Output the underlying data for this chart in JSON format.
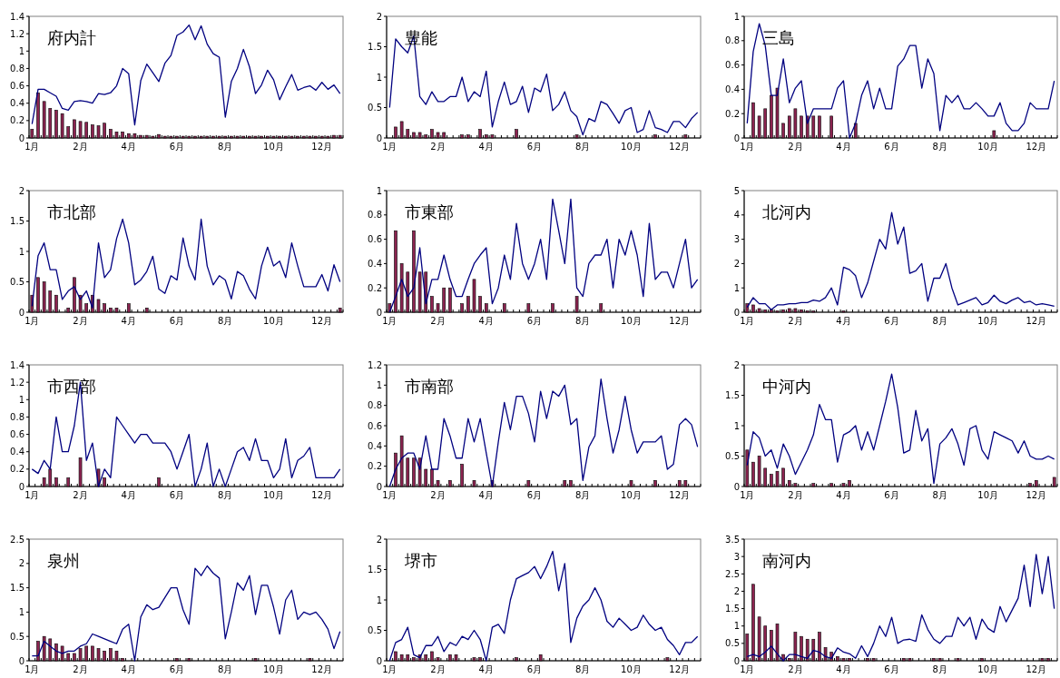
{
  "chart_data": [
    {
      "type": "bar",
      "title": "府内計",
      "ylim": [
        0,
        1.4
      ],
      "yticks": [
        0,
        0.2,
        0.4,
        0.6,
        0.8,
        1,
        1.2,
        1.4
      ],
      "categories": [
        "1月",
        null,
        null,
        null,
        null,
        null,
        null,
        null,
        "2月",
        null,
        null,
        null,
        null,
        null,
        null,
        null,
        "4月",
        null,
        null,
        null,
        null,
        null,
        null,
        null,
        "6月",
        null,
        null,
        null,
        null,
        null,
        null,
        null,
        "8月",
        null,
        null,
        null,
        null,
        null,
        null,
        null,
        "10月",
        null,
        null,
        null,
        null,
        null,
        null,
        null,
        "12月",
        null,
        null,
        null
      ],
      "series": [
        {
          "type": "bar",
          "color": "#8c2350",
          "values": [
            0.1,
            0.52,
            0.42,
            0.34,
            0.32,
            0.28,
            0.13,
            0.21,
            0.19,
            0.18,
            0.15,
            0.14,
            0.17,
            0.1,
            0.07,
            0.07,
            0.05,
            0.05,
            0.03,
            0.03,
            0.02,
            0.04,
            0.02,
            0.02,
            0.02,
            0.02,
            0.02,
            0.02,
            0.02,
            0.02,
            0.02,
            0.02,
            0.02,
            0.02,
            0.02,
            0.02,
            0.02,
            0.02,
            0.02,
            0.02,
            0.02,
            0.02,
            0.02,
            0.02,
            0.02,
            0.02,
            0.02,
            0.02,
            0.02,
            0.02,
            0.03,
            0.03
          ]
        },
        {
          "type": "line",
          "color": "#000080",
          "values": [
            0.16,
            0.56,
            0.56,
            0.52,
            0.48,
            0.34,
            0.32,
            0.42,
            0.43,
            0.42,
            0.4,
            0.51,
            0.5,
            0.52,
            0.6,
            0.8,
            0.74,
            0.15,
            0.66,
            0.85,
            0.75,
            0.65,
            0.86,
            0.95,
            1.18,
            1.22,
            1.3,
            1.13,
            1.29,
            1.08,
            0.97,
            0.93,
            0.24,
            0.65,
            0.8,
            1.02,
            0.82,
            0.51,
            0.61,
            0.78,
            0.67,
            0.44,
            0.59,
            0.73,
            0.55,
            0.58,
            0.6,
            0.55,
            0.64,
            0.56,
            0.61,
            0.51
          ]
        }
      ]
    },
    {
      "type": "bar",
      "title": "豊能",
      "ylim": [
        0,
        2
      ],
      "yticks": [
        0,
        0.5,
        1,
        1.5,
        2
      ],
      "categories": [
        "1月",
        null,
        null,
        null,
        null,
        null,
        null,
        null,
        "2月",
        null,
        null,
        null,
        null,
        null,
        null,
        null,
        "4月",
        null,
        null,
        null,
        null,
        null,
        null,
        null,
        "6月",
        null,
        null,
        null,
        null,
        null,
        null,
        null,
        "8月",
        null,
        null,
        null,
        null,
        null,
        null,
        null,
        "10月",
        null,
        null,
        null,
        null,
        null,
        null,
        null,
        "12月",
        null,
        null,
        null
      ],
      "series": [
        {
          "type": "bar",
          "color": "#8c2350",
          "values": [
            0,
            0.18,
            0.27,
            0.14,
            0.09,
            0.09,
            0.05,
            0.14,
            0.09,
            0.09,
            0,
            0,
            0.05,
            0.05,
            0,
            0.14,
            0.05,
            0.05,
            0,
            0,
            0,
            0.14,
            0,
            0,
            0,
            0,
            0,
            0,
            0,
            0,
            0,
            0.05,
            0,
            0,
            0,
            0,
            0,
            0,
            0,
            0,
            0,
            0,
            0,
            0,
            0.05,
            0,
            0,
            0,
            0,
            0.05,
            0,
            0
          ]
        },
        {
          "type": "line",
          "color": "#000080",
          "values": [
            0.5,
            1.63,
            1.5,
            1.4,
            1.68,
            0.68,
            0.55,
            0.76,
            0.6,
            0.6,
            0.68,
            0.68,
            1.0,
            0.6,
            0.76,
            0.68,
            1.1,
            0.18,
            0.6,
            0.92,
            0.55,
            0.6,
            0.85,
            0.42,
            0.82,
            0.76,
            1.05,
            0.45,
            0.55,
            0.76,
            0.45,
            0.35,
            0.05,
            0.32,
            0.27,
            0.6,
            0.55,
            0.4,
            0.24,
            0.45,
            0.5,
            0.09,
            0.14,
            0.45,
            0.17,
            0.14,
            0.09,
            0.27,
            0.27,
            0.17,
            0.32,
            0.42
          ]
        }
      ]
    },
    {
      "type": "bar",
      "title": "三島",
      "ylim": [
        0,
        1
      ],
      "yticks": [
        0,
        0.2,
        0.4,
        0.6,
        0.8,
        1
      ],
      "categories": [
        "1月",
        null,
        null,
        null,
        null,
        null,
        null,
        null,
        "2月",
        null,
        null,
        null,
        null,
        null,
        null,
        null,
        "4月",
        null,
        null,
        null,
        null,
        null,
        null,
        null,
        "6月",
        null,
        null,
        null,
        null,
        null,
        null,
        null,
        "8月",
        null,
        null,
        null,
        null,
        null,
        null,
        null,
        "10月",
        null,
        null,
        null,
        null,
        null,
        null,
        null,
        "12月",
        null,
        null,
        null
      ],
      "series": [
        {
          "type": "bar",
          "color": "#8c2350",
          "values": [
            0,
            0.29,
            0.18,
            0.24,
            0.35,
            0.41,
            0.12,
            0.18,
            0.24,
            0.18,
            0.18,
            0.18,
            0.18,
            0,
            0.18,
            0,
            0,
            0,
            0.12,
            0,
            0,
            0,
            0,
            0,
            0,
            0,
            0,
            0,
            0,
            0,
            0,
            0,
            0,
            0,
            0,
            0,
            0,
            0,
            0,
            0,
            0,
            0.06,
            0,
            0,
            0,
            0,
            0,
            0,
            0,
            0,
            0,
            0
          ]
        },
        {
          "type": "line",
          "color": "#000080",
          "values": [
            0.12,
            0.71,
            0.94,
            0.76,
            0.35,
            0.35,
            0.65,
            0.29,
            0.41,
            0.47,
            0.12,
            0.24,
            0.24,
            0.24,
            0.24,
            0.41,
            0.47,
            0,
            0.12,
            0.35,
            0.47,
            0.24,
            0.41,
            0.24,
            0.24,
            0.59,
            0.65,
            0.76,
            0.76,
            0.41,
            0.65,
            0.53,
            0.06,
            0.35,
            0.29,
            0.35,
            0.24,
            0.24,
            0.29,
            0.24,
            0.18,
            0.18,
            0.29,
            0.12,
            0.06,
            0.06,
            0.12,
            0.29,
            0.24,
            0.24,
            0.24,
            0.47
          ]
        }
      ]
    },
    {
      "type": "bar",
      "title": "市北部",
      "ylim": [
        0,
        2
      ],
      "yticks": [
        0,
        0.5,
        1,
        1.5,
        2
      ],
      "categories": [
        "1月",
        null,
        null,
        null,
        null,
        null,
        null,
        null,
        "2月",
        null,
        null,
        null,
        null,
        null,
        null,
        null,
        "4月",
        null,
        null,
        null,
        null,
        null,
        null,
        null,
        "6月",
        null,
        null,
        null,
        null,
        null,
        null,
        null,
        "8月",
        null,
        null,
        null,
        null,
        null,
        null,
        null,
        "10月",
        null,
        null,
        null,
        null,
        null,
        null,
        null,
        "12月",
        null,
        null,
        null
      ],
      "series": [
        {
          "type": "bar",
          "color": "#8c2350",
          "values": [
            0.28,
            0.57,
            0.5,
            0.35,
            0.28,
            0,
            0.07,
            0.57,
            0.28,
            0.14,
            0.28,
            0.21,
            0.14,
            0.07,
            0.07,
            0,
            0.14,
            0,
            0,
            0.07,
            0,
            0,
            0,
            0,
            0,
            0,
            0,
            0,
            0,
            0,
            0,
            0,
            0,
            0,
            0,
            0,
            0,
            0,
            0,
            0,
            0,
            0,
            0,
            0,
            0,
            0,
            0,
            0,
            0,
            0,
            0,
            0.07
          ]
        },
        {
          "type": "line",
          "color": "#000080",
          "values": [
            0.1,
            0.93,
            1.14,
            0.7,
            0.7,
            0.21,
            0.35,
            0.42,
            0.21,
            0.35,
            0.07,
            1.14,
            0.57,
            0.7,
            1.21,
            1.53,
            1.14,
            0.45,
            0.53,
            0.67,
            0.92,
            0.38,
            0.31,
            0.6,
            0.53,
            1.22,
            0.76,
            0.53,
            1.53,
            0.76,
            0.45,
            0.6,
            0.53,
            0.22,
            0.67,
            0.6,
            0.38,
            0.22,
            0.76,
            1.07,
            0.76,
            0.84,
            0.57,
            1.14,
            0.76,
            0.42,
            0.42,
            0.42,
            0.62,
            0.35,
            0.78,
            0.5
          ]
        }
      ]
    },
    {
      "type": "bar",
      "title": "市東部",
      "ylim": [
        0,
        1
      ],
      "yticks": [
        0,
        0.2,
        0.4,
        0.6,
        0.8,
        1
      ],
      "categories": [
        "1月",
        null,
        null,
        null,
        null,
        null,
        null,
        null,
        "2月",
        null,
        null,
        null,
        null,
        null,
        null,
        null,
        "4月",
        null,
        null,
        null,
        null,
        null,
        null,
        null,
        "6月",
        null,
        null,
        null,
        null,
        null,
        null,
        null,
        "8月",
        null,
        null,
        null,
        null,
        null,
        null,
        null,
        "10月",
        null,
        null,
        null,
        null,
        null,
        null,
        null,
        "12月",
        null,
        null,
        null
      ],
      "series": [
        {
          "type": "bar",
          "color": "#8c2350",
          "values": [
            0.07,
            0.67,
            0.4,
            0.33,
            0.67,
            0.33,
            0.33,
            0.13,
            0.07,
            0.2,
            0.2,
            0,
            0.07,
            0.13,
            0.27,
            0.13,
            0.07,
            0,
            0,
            0.07,
            0,
            0,
            0,
            0.07,
            0,
            0,
            0,
            0.07,
            0,
            0,
            0,
            0.13,
            0,
            0,
            0,
            0.07,
            0,
            0,
            0,
            0,
            0,
            0,
            0,
            0,
            0,
            0,
            0,
            0,
            0,
            0,
            0,
            0
          ]
        },
        {
          "type": "line",
          "color": "#000080",
          "values": [
            0,
            0.13,
            0.27,
            0.13,
            0.2,
            0.53,
            0.07,
            0.27,
            0.27,
            0.47,
            0.27,
            0.13,
            0.13,
            0.27,
            0.4,
            0.47,
            0.53,
            0.07,
            0.2,
            0.47,
            0.27,
            0.73,
            0.4,
            0.27,
            0.4,
            0.6,
            0.27,
            0.93,
            0.67,
            0.4,
            0.93,
            0.2,
            0.13,
            0.4,
            0.47,
            0.47,
            0.6,
            0.2,
            0.6,
            0.47,
            0.67,
            0.47,
            0.13,
            0.73,
            0.27,
            0.33,
            0.33,
            0.2,
            0.4,
            0.6,
            0.2,
            0.27
          ]
        }
      ]
    },
    {
      "type": "bar",
      "title": "北河内",
      "ylim": [
        0,
        5
      ],
      "yticks": [
        0,
        1,
        2,
        3,
        4,
        5
      ],
      "categories": [
        "1月",
        null,
        null,
        null,
        null,
        null,
        null,
        null,
        "2月",
        null,
        null,
        null,
        null,
        null,
        null,
        null,
        "4月",
        null,
        null,
        null,
        null,
        null,
        null,
        null,
        "6月",
        null,
        null,
        null,
        null,
        null,
        null,
        null,
        "8月",
        null,
        null,
        null,
        null,
        null,
        null,
        null,
        "10月",
        null,
        null,
        null,
        null,
        null,
        null,
        null,
        "12月",
        null,
        null,
        null
      ],
      "series": [
        {
          "type": "bar",
          "color": "#8c2350",
          "values": [
            0.35,
            0.3,
            0.15,
            0.1,
            0.1,
            0.05,
            0.1,
            0.15,
            0.15,
            0.1,
            0.05,
            0.05,
            0,
            0,
            0,
            0,
            0.05,
            0,
            0,
            0,
            0,
            0,
            0,
            0,
            0,
            0,
            0,
            0,
            0,
            0,
            0,
            0,
            0,
            0,
            0,
            0,
            0,
            0,
            0,
            0,
            0,
            0,
            0,
            0,
            0,
            0,
            0,
            0,
            0,
            0,
            0,
            0
          ]
        },
        {
          "type": "line",
          "color": "#000080",
          "values": [
            0.2,
            0.6,
            0.35,
            0.35,
            0.1,
            0.3,
            0.3,
            0.35,
            0.35,
            0.4,
            0.4,
            0.5,
            0.45,
            0.6,
            1.0,
            0.3,
            1.85,
            1.75,
            1.5,
            0.6,
            1.2,
            2.1,
            3.0,
            2.6,
            4.1,
            2.8,
            3.5,
            1.6,
            1.7,
            2.0,
            0.45,
            1.4,
            1.4,
            2.0,
            1.0,
            0.3,
            0.4,
            0.5,
            0.6,
            0.3,
            0.4,
            0.7,
            0.45,
            0.35,
            0.5,
            0.6,
            0.4,
            0.45,
            0.3,
            0.35,
            0.3,
            0.25
          ]
        }
      ]
    },
    {
      "type": "bar",
      "title": "市西部",
      "ylim": [
        0,
        1.4
      ],
      "yticks": [
        0,
        0.2,
        0.4,
        0.6,
        0.8,
        1,
        1.2,
        1.4
      ],
      "categories": [
        "1月",
        null,
        null,
        null,
        null,
        null,
        null,
        null,
        "2月",
        null,
        null,
        null,
        null,
        null,
        null,
        null,
        "4月",
        null,
        null,
        null,
        null,
        null,
        null,
        null,
        "6月",
        null,
        null,
        null,
        null,
        null,
        null,
        null,
        "8月",
        null,
        null,
        null,
        null,
        null,
        null,
        null,
        "10月",
        null,
        null,
        null,
        null,
        null,
        null,
        null,
        "12月",
        null,
        null,
        null
      ],
      "series": [
        {
          "type": "bar",
          "color": "#8c2350",
          "values": [
            0,
            0,
            0.1,
            0.2,
            0.1,
            0,
            0.1,
            0,
            0.33,
            0,
            0,
            0.2,
            0.1,
            0,
            0,
            0,
            0,
            0,
            0,
            0,
            0,
            0.1,
            0,
            0,
            0,
            0,
            0,
            0,
            0,
            0,
            0,
            0,
            0,
            0,
            0,
            0,
            0,
            0,
            0,
            0,
            0,
            0,
            0,
            0,
            0,
            0,
            0,
            0,
            0,
            0,
            0,
            0
          ]
        },
        {
          "type": "line",
          "color": "#000080",
          "values": [
            0.2,
            0.15,
            0.3,
            0.2,
            0.8,
            0.4,
            0.4,
            0.7,
            1.2,
            0.3,
            0.5,
            0,
            0.2,
            0.1,
            0.8,
            0.7,
            0.6,
            0.5,
            0.6,
            0.6,
            0.5,
            0.5,
            0.5,
            0.4,
            0.2,
            0.4,
            0.6,
            0,
            0.2,
            0.5,
            0,
            0.2,
            0,
            0.2,
            0.4,
            0.45,
            0.3,
            0.55,
            0.3,
            0.3,
            0.1,
            0.2,
            0.55,
            0.1,
            0.3,
            0.35,
            0.45,
            0.1,
            0.1,
            0.1,
            0.1,
            0.2
          ]
        }
      ]
    },
    {
      "type": "bar",
      "title": "市南部",
      "ylim": [
        0,
        1.2
      ],
      "yticks": [
        0,
        0.2,
        0.4,
        0.6,
        0.8,
        1,
        1.2
      ],
      "categories": [
        "1月",
        null,
        null,
        null,
        null,
        null,
        null,
        null,
        "2月",
        null,
        null,
        null,
        null,
        null,
        null,
        null,
        "4月",
        null,
        null,
        null,
        null,
        null,
        null,
        null,
        "6月",
        null,
        null,
        null,
        null,
        null,
        null,
        null,
        "8月",
        null,
        null,
        null,
        null,
        null,
        null,
        null,
        "10月",
        null,
        null,
        null,
        null,
        null,
        null,
        null,
        "12月",
        null,
        null,
        null
      ],
      "series": [
        {
          "type": "bar",
          "color": "#8c2350",
          "values": [
            0,
            0.33,
            0.5,
            0.28,
            0.28,
            0.28,
            0.17,
            0.17,
            0.06,
            0,
            0.06,
            0,
            0.22,
            0,
            0.06,
            0,
            0,
            0.06,
            0,
            0,
            0,
            0,
            0,
            0.06,
            0,
            0,
            0,
            0,
            0,
            0.06,
            0.06,
            0,
            0,
            0,
            0,
            0,
            0,
            0,
            0,
            0,
            0.06,
            0,
            0,
            0,
            0.06,
            0,
            0,
            0,
            0.06,
            0.06,
            0,
            0
          ]
        },
        {
          "type": "line",
          "color": "#000080",
          "values": [
            0,
            0.17,
            0.28,
            0.33,
            0.33,
            0.17,
            0.5,
            0.17,
            0.17,
            0.67,
            0.5,
            0.28,
            0.28,
            0.67,
            0.44,
            0.67,
            0.33,
            0,
            0.44,
            0.83,
            0.56,
            0.89,
            0.89,
            0.72,
            0.44,
            0.94,
            0.67,
            0.94,
            0.89,
            1.0,
            0.61,
            0.67,
            0.06,
            0.39,
            0.5,
            1.06,
            0.67,
            0.33,
            0.56,
            0.89,
            0.56,
            0.33,
            0.44,
            0.44,
            0.44,
            0.5,
            0.17,
            0.22,
            0.61,
            0.67,
            0.61,
            0.39
          ]
        }
      ]
    },
    {
      "type": "bar",
      "title": "中河内",
      "ylim": [
        0,
        2
      ],
      "yticks": [
        0,
        0.5,
        1,
        1.5,
        2
      ],
      "categories": [
        "1月",
        null,
        null,
        null,
        null,
        null,
        null,
        null,
        "2月",
        null,
        null,
        null,
        null,
        null,
        null,
        null,
        "4月",
        null,
        null,
        null,
        null,
        null,
        null,
        null,
        "6月",
        null,
        null,
        null,
        null,
        null,
        null,
        null,
        "8月",
        null,
        null,
        null,
        null,
        null,
        null,
        null,
        "10月",
        null,
        null,
        null,
        null,
        null,
        null,
        null,
        "12月",
        null,
        null,
        null
      ],
      "series": [
        {
          "type": "bar",
          "color": "#8c2350",
          "values": [
            0.6,
            0.4,
            0.5,
            0.3,
            0.2,
            0.25,
            0.3,
            0.1,
            0.05,
            0,
            0,
            0.05,
            0,
            0,
            0.05,
            0,
            0.05,
            0.1,
            0,
            0,
            0,
            0,
            0,
            0,
            0,
            0,
            0,
            0,
            0,
            0,
            0,
            0,
            0,
            0,
            0,
            0,
            0,
            0,
            0,
            0,
            0,
            0,
            0,
            0,
            0,
            0,
            0,
            0.05,
            0.1,
            0,
            0,
            0.15
          ]
        },
        {
          "type": "line",
          "color": "#000080",
          "values": [
            0.35,
            0.9,
            0.8,
            0.5,
            0.6,
            0.3,
            0.7,
            0.5,
            0.2,
            0.4,
            0.6,
            0.85,
            1.35,
            1.1,
            1.1,
            0.4,
            0.85,
            0.9,
            1.0,
            0.6,
            0.9,
            0.6,
            1.0,
            1.4,
            1.85,
            1.3,
            0.55,
            0.6,
            1.25,
            0.75,
            0.95,
            0.05,
            0.7,
            0.8,
            0.95,
            0.7,
            0.35,
            0.95,
            1.0,
            0.6,
            0.45,
            0.9,
            0.85,
            0.8,
            0.75,
            0.55,
            0.75,
            0.5,
            0.45,
            0.45,
            0.5,
            0.45
          ]
        }
      ]
    },
    {
      "type": "bar",
      "title": "泉州",
      "ylim": [
        0,
        2.5
      ],
      "yticks": [
        0,
        0.5,
        1,
        1.5,
        2,
        2.5
      ],
      "categories": [
        "1月",
        null,
        null,
        null,
        null,
        null,
        null,
        null,
        "2月",
        null,
        null,
        null,
        null,
        null,
        null,
        null,
        "4月",
        null,
        null,
        null,
        null,
        null,
        null,
        null,
        "6月",
        null,
        null,
        null,
        null,
        null,
        null,
        null,
        "8月",
        null,
        null,
        null,
        null,
        null,
        null,
        null,
        "10月",
        null,
        null,
        null,
        null,
        null,
        null,
        null,
        "12月",
        null,
        null,
        null
      ],
      "series": [
        {
          "type": "bar",
          "color": "#8c2350",
          "values": [
            0,
            0.4,
            0.5,
            0.45,
            0.35,
            0.3,
            0.15,
            0.15,
            0.25,
            0.3,
            0.3,
            0.25,
            0.2,
            0.25,
            0.2,
            0.05,
            0,
            0,
            0,
            0,
            0,
            0,
            0,
            0,
            0.05,
            0,
            0.05,
            0,
            0,
            0,
            0,
            0,
            0,
            0,
            0,
            0,
            0,
            0.05,
            0,
            0,
            0,
            0,
            0,
            0,
            0,
            0,
            0.05,
            0,
            0,
            0,
            0,
            0
          ]
        },
        {
          "type": "line",
          "color": "#000080",
          "values": [
            0.1,
            0.1,
            0.4,
            0.3,
            0.2,
            0.15,
            0.2,
            0.2,
            0.3,
            0.35,
            0.55,
            0.5,
            0.45,
            0.4,
            0.35,
            0.65,
            0.75,
            0,
            0.9,
            1.15,
            1.05,
            1.1,
            1.3,
            1.5,
            1.5,
            1.05,
            0.75,
            1.9,
            1.75,
            1.95,
            1.8,
            1.7,
            0.45,
            1.0,
            1.6,
            1.45,
            1.75,
            0.95,
            1.55,
            1.55,
            1.1,
            0.55,
            1.25,
            1.45,
            0.85,
            1.0,
            0.95,
            1.0,
            0.85,
            0.65,
            0.25,
            0.6
          ]
        }
      ]
    },
    {
      "type": "bar",
      "title": "堺市",
      "ylim": [
        0,
        2
      ],
      "yticks": [
        0,
        0.5,
        1,
        1.5,
        2
      ],
      "categories": [
        "1月",
        null,
        null,
        null,
        null,
        null,
        null,
        null,
        "2月",
        null,
        null,
        null,
        null,
        null,
        null,
        null,
        "4月",
        null,
        null,
        null,
        null,
        null,
        null,
        null,
        "6月",
        null,
        null,
        null,
        null,
        null,
        null,
        null,
        "8月",
        null,
        null,
        null,
        null,
        null,
        null,
        null,
        "10月",
        null,
        null,
        null,
        null,
        null,
        null,
        null,
        "12月",
        null,
        null,
        null
      ],
      "series": [
        {
          "type": "bar",
          "color": "#8c2350",
          "values": [
            0,
            0.15,
            0.1,
            0.1,
            0.05,
            0.1,
            0.1,
            0.15,
            0.05,
            0,
            0.1,
            0.1,
            0,
            0,
            0.05,
            0.05,
            0,
            0,
            0,
            0,
            0,
            0.05,
            0,
            0,
            0,
            0.1,
            0,
            0,
            0,
            0,
            0,
            0,
            0,
            0,
            0,
            0,
            0,
            0,
            0,
            0,
            0,
            0,
            0,
            0,
            0,
            0,
            0.05,
            0,
            0,
            0,
            0,
            0
          ]
        },
        {
          "type": "line",
          "color": "#000080",
          "values": [
            0,
            0.3,
            0.35,
            0.55,
            0.1,
            0.05,
            0.25,
            0.25,
            0.4,
            0.15,
            0.3,
            0.25,
            0.4,
            0.35,
            0.5,
            0.35,
            0,
            0.55,
            0.6,
            0.45,
            1.0,
            1.35,
            1.4,
            1.45,
            1.55,
            1.35,
            1.55,
            1.8,
            1.15,
            1.6,
            0.3,
            0.7,
            0.9,
            1.0,
            1.2,
            1.0,
            0.65,
            0.55,
            0.7,
            0.6,
            0.5,
            0.55,
            0.75,
            0.6,
            0.5,
            0.55,
            0.35,
            0.25,
            0.1,
            0.3,
            0.3,
            0.4
          ]
        }
      ]
    },
    {
      "type": "bar",
      "title": "南河内",
      "ylim": [
        0,
        3.5
      ],
      "yticks": [
        0,
        0.5,
        1,
        1.5,
        2,
        2.5,
        3,
        3.5
      ],
      "categories": [
        "1月",
        null,
        null,
        null,
        null,
        null,
        null,
        null,
        "2月",
        null,
        null,
        null,
        null,
        null,
        null,
        null,
        "4月",
        null,
        null,
        null,
        null,
        null,
        null,
        null,
        "6月",
        null,
        null,
        null,
        null,
        null,
        null,
        null,
        "8月",
        null,
        null,
        null,
        null,
        null,
        null,
        null,
        "10月",
        null,
        null,
        null,
        null,
        null,
        null,
        null,
        "12月",
        null,
        null,
        null
      ],
      "series": [
        {
          "type": "bar",
          "color": "#8c2350",
          "values": [
            0.77,
            2.2,
            1.26,
            1.0,
            0.88,
            1.06,
            0.18,
            0.07,
            0.82,
            0.7,
            0.62,
            0.62,
            0.82,
            0.38,
            0.25,
            0.12,
            0.07,
            0.07,
            0,
            0,
            0.07,
            0.07,
            0,
            0,
            0,
            0,
            0.07,
            0.07,
            0,
            0,
            0,
            0.07,
            0.07,
            0,
            0,
            0.07,
            0,
            0,
            0,
            0.07,
            0,
            0,
            0,
            0,
            0,
            0,
            0,
            0,
            0,
            0.07,
            0.07,
            0
          ]
        },
        {
          "type": "line",
          "color": "#000080",
          "values": [
            0.12,
            0.18,
            0.12,
            0.25,
            0.42,
            0.2,
            0,
            0.18,
            0.18,
            0.12,
            0.07,
            0.3,
            0.25,
            0.12,
            0.07,
            0.37,
            0.25,
            0.2,
            0.07,
            0.43,
            0.12,
            0.5,
            1.0,
            0.7,
            1.25,
            0.5,
            0.6,
            0.62,
            0.56,
            1.32,
            0.9,
            0.62,
            0.5,
            0.7,
            0.7,
            1.25,
            1.0,
            1.25,
            0.62,
            1.2,
            0.93,
            0.82,
            1.56,
            1.12,
            1.46,
            1.8,
            2.75,
            1.56,
            3.06,
            1.93,
            3.0,
            1.5
          ]
        }
      ]
    }
  ]
}
